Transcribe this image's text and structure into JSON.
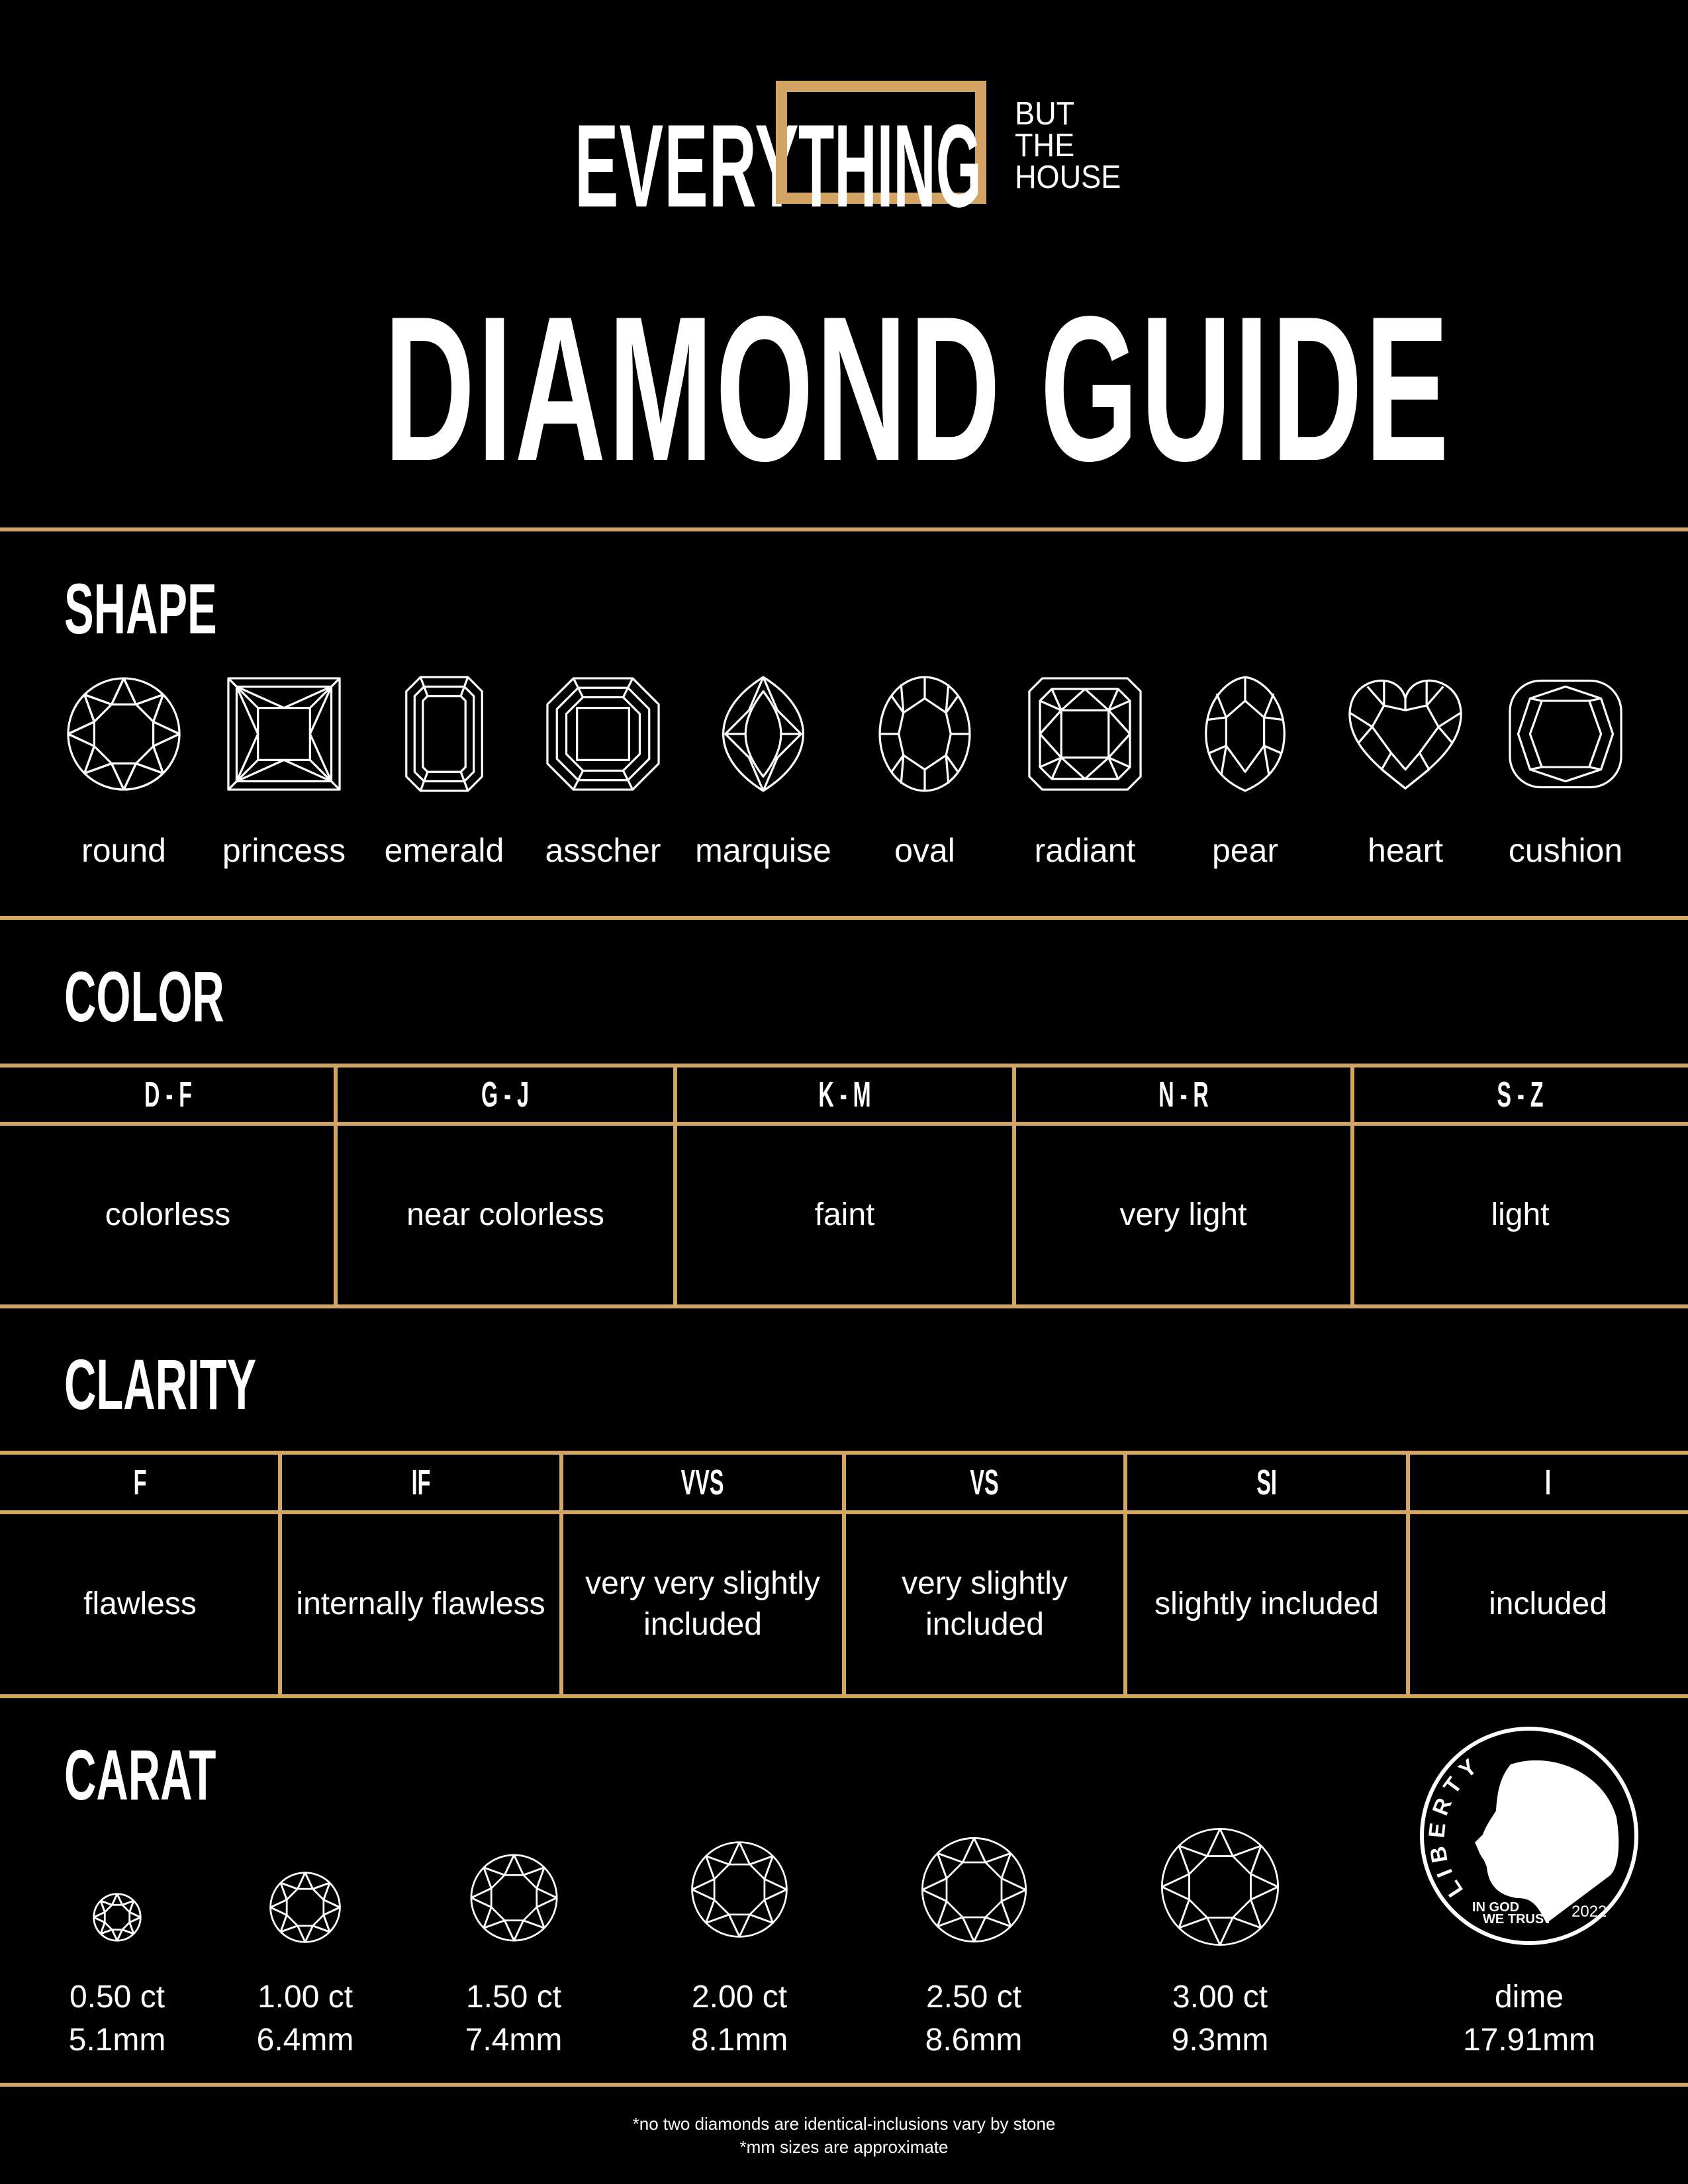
{
  "brand": {
    "logo_left": "EVERY",
    "logo_boxed": "THING",
    "logo_tag": [
      "BUT",
      "THE",
      "HOUSE"
    ]
  },
  "title": "DIAMOND GUIDE",
  "accent_color": "#d4a464",
  "shape": {
    "heading": "SHAPE",
    "items": [
      {
        "label": "round",
        "icon": "round-diamond-icon"
      },
      {
        "label": "princess",
        "icon": "princess-diamond-icon"
      },
      {
        "label": "emerald",
        "icon": "emerald-diamond-icon"
      },
      {
        "label": "asscher",
        "icon": "asscher-diamond-icon"
      },
      {
        "label": "marquise",
        "icon": "marquise-diamond-icon"
      },
      {
        "label": "oval",
        "icon": "oval-diamond-icon"
      },
      {
        "label": "radiant",
        "icon": "radiant-diamond-icon"
      },
      {
        "label": "pear",
        "icon": "pear-diamond-icon"
      },
      {
        "label": "heart",
        "icon": "heart-diamond-icon"
      },
      {
        "label": "cushion",
        "icon": "cushion-diamond-icon"
      }
    ]
  },
  "color": {
    "heading": "COLOR",
    "columns": [
      {
        "grade": "D - F",
        "desc": "colorless"
      },
      {
        "grade": "G - J",
        "desc": "near colorless"
      },
      {
        "grade": "K - M",
        "desc": "faint"
      },
      {
        "grade": "N - R",
        "desc": "very light"
      },
      {
        "grade": "S - Z",
        "desc": "light"
      }
    ]
  },
  "clarity": {
    "heading": "CLARITY",
    "columns": [
      {
        "grade": "F",
        "desc": "flawless"
      },
      {
        "grade": "IF",
        "desc": "internally flawless"
      },
      {
        "grade": "VVS",
        "desc": "very very slightly included"
      },
      {
        "grade": "VS",
        "desc": "very slightly included"
      },
      {
        "grade": "SI",
        "desc": "slightly included"
      },
      {
        "grade": "I",
        "desc": "included"
      }
    ]
  },
  "carat": {
    "heading": "CARAT",
    "items": [
      {
        "weight": "0.50 ct",
        "size": "5.1mm"
      },
      {
        "weight": "1.00 ct",
        "size": "6.4mm"
      },
      {
        "weight": "1.50 ct",
        "size": "7.4mm"
      },
      {
        "weight": "2.00 ct",
        "size": "8.1mm"
      },
      {
        "weight": "2.50 ct",
        "size": "8.6mm"
      },
      {
        "weight": "3.00 ct",
        "size": "9.3mm"
      }
    ],
    "reference": {
      "label": "dime",
      "size": "17.91mm",
      "coin_text": {
        "liberty": "LIBERTY",
        "motto_1": "IN GOD",
        "motto_2": "WE TRUST",
        "year": "2022"
      }
    }
  },
  "footnotes": [
    "*no two diamonds are identical-inclusions vary by stone",
    "*mm sizes are approximate"
  ]
}
